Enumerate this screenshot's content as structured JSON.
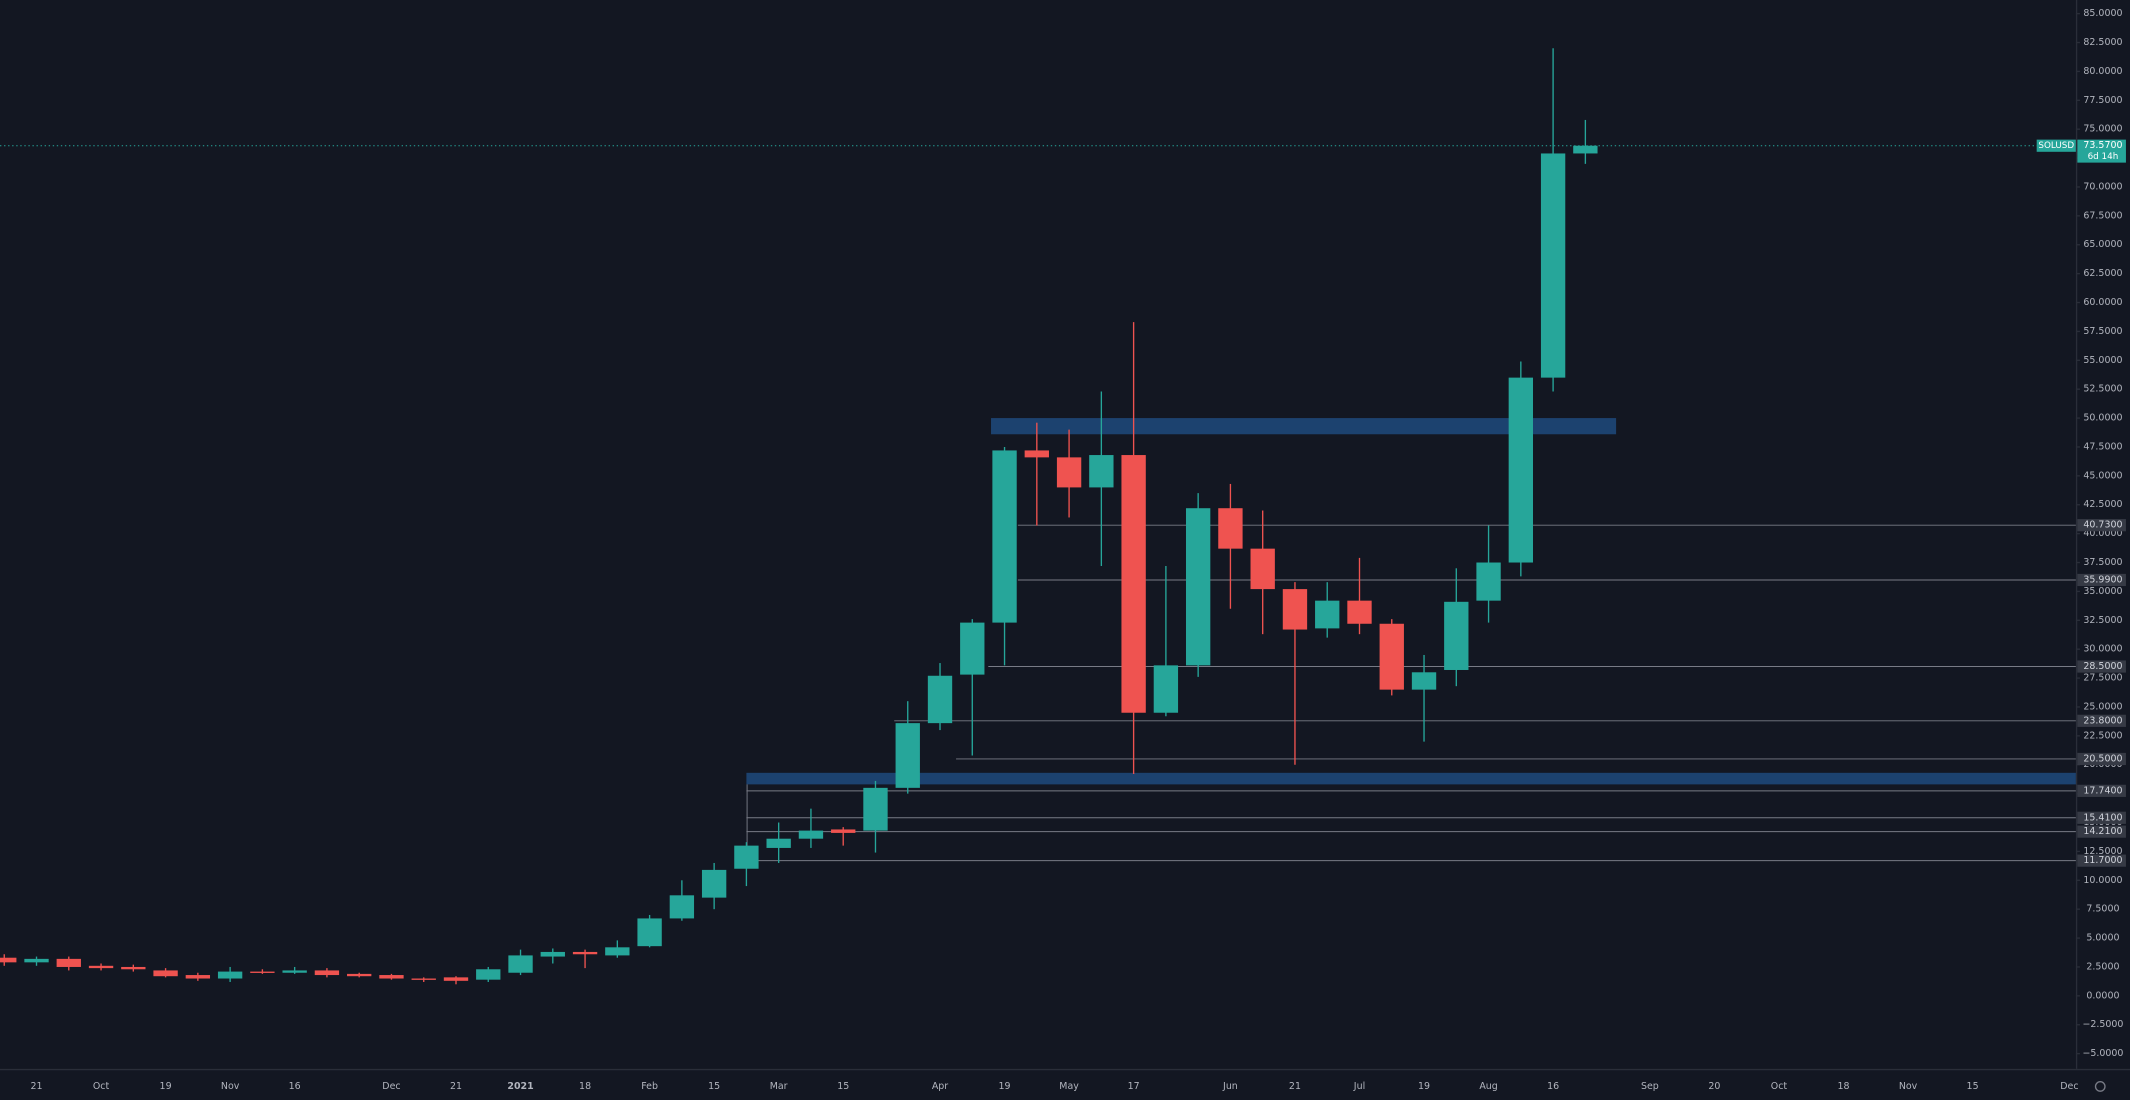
{
  "chart_data": {
    "type": "candlestick",
    "symbol": "SOLUSD",
    "countdown": "6d 14h",
    "last_price": {
      "value": 73.57,
      "label": "73.5700"
    },
    "up_color": "#26a69a",
    "down_color": "#ef5350",
    "zone_color": "#1f4a7d",
    "level_color": "#787b86",
    "categories": [
      null,
      "21",
      null,
      "Oct",
      null,
      "19",
      null,
      "Nov",
      null,
      "16",
      null,
      null,
      "Dec",
      null,
      "21",
      null,
      "2021",
      null,
      "18",
      null,
      "Feb",
      null,
      "15",
      null,
      "Mar",
      null,
      "15",
      null,
      null,
      "Apr",
      null,
      "19",
      null,
      "May",
      null,
      "17",
      null,
      null,
      "Jun",
      null,
      "21",
      null,
      "Jul",
      null,
      "19",
      null,
      "Aug",
      null,
      "16",
      null,
      null,
      "Sep",
      null,
      "20",
      null,
      "Oct",
      null,
      "18",
      null,
      "Nov",
      null,
      "15",
      null,
      null,
      "Dec"
    ],
    "open": [
      3.3,
      2.9,
      3.2,
      2.6,
      2.5,
      2.2,
      1.8,
      1.5,
      2.1,
      2.0,
      2.2,
      1.9,
      1.8,
      1.5,
      1.6,
      1.4,
      2.0,
      3.4,
      3.8,
      3.5,
      4.3,
      6.7,
      8.5,
      11.0,
      12.8,
      13.6,
      14.4,
      14.3,
      18.0,
      23.6,
      27.8,
      32.3,
      47.2,
      46.6,
      44.0,
      46.8,
      24.5,
      28.6,
      42.2,
      38.7,
      35.2,
      31.8,
      34.2,
      32.2,
      26.5,
      28.2,
      34.2,
      37.5,
      53.5,
      72.9,
      null,
      null,
      null,
      null,
      null,
      null,
      null,
      null,
      null,
      null,
      null,
      null,
      null,
      null,
      null
    ],
    "high": [
      3.6,
      3.4,
      3.4,
      2.8,
      2.7,
      2.4,
      2.0,
      2.5,
      2.3,
      2.5,
      2.4,
      2.0,
      1.9,
      1.6,
      1.7,
      2.5,
      4.0,
      4.1,
      4.0,
      4.8,
      7.0,
      10.0,
      11.5,
      13.3,
      15.0,
      16.2,
      14.6,
      18.6,
      25.5,
      28.8,
      32.6,
      47.5,
      49.6,
      49.0,
      52.3,
      58.3,
      37.2,
      43.5,
      44.3,
      42.0,
      35.8,
      35.8,
      37.9,
      32.6,
      29.5,
      37.0,
      40.7,
      54.9,
      82.0,
      75.8,
      null,
      null,
      null,
      null,
      null,
      null,
      null,
      null,
      null,
      null,
      null,
      null,
      null,
      null,
      null
    ],
    "low": [
      2.6,
      2.6,
      2.2,
      2.2,
      2.1,
      1.6,
      1.3,
      1.2,
      1.9,
      1.9,
      1.6,
      1.6,
      1.4,
      1.2,
      1.0,
      1.2,
      1.8,
      2.8,
      2.4,
      3.3,
      4.2,
      6.5,
      7.5,
      9.5,
      11.5,
      12.8,
      13.0,
      12.4,
      17.5,
      23.0,
      20.8,
      28.6,
      40.7,
      41.4,
      37.2,
      19.2,
      24.2,
      27.6,
      33.5,
      31.3,
      20.0,
      31.0,
      31.3,
      26.0,
      22.0,
      26.8,
      32.3,
      36.3,
      52.3,
      72.0,
      null,
      null,
      null,
      null,
      null,
      null,
      null,
      null,
      null,
      null,
      null,
      null,
      null,
      null,
      null
    ],
    "close": [
      2.9,
      3.2,
      2.5,
      2.4,
      2.3,
      1.7,
      1.5,
      2.1,
      2.0,
      2.2,
      1.8,
      1.7,
      1.5,
      1.4,
      1.3,
      2.3,
      3.5,
      3.8,
      3.6,
      4.2,
      6.7,
      8.7,
      10.9,
      13.0,
      13.6,
      14.3,
      14.1,
      18.0,
      23.6,
      27.7,
      32.3,
      47.2,
      46.6,
      44.0,
      46.8,
      24.5,
      28.6,
      42.2,
      38.7,
      35.2,
      31.7,
      34.2,
      32.2,
      26.5,
      28.0,
      34.1,
      37.5,
      53.5,
      72.9,
      73.57,
      null,
      null,
      null,
      null,
      null,
      null,
      null,
      null,
      null,
      null,
      null,
      null,
      null,
      null,
      null
    ],
    "ylim": [
      -6.32,
      86.18
    ],
    "yticks": [
      {
        "value": 85,
        "label": "85.0000"
      },
      {
        "value": 82.5,
        "label": "82.5000"
      },
      {
        "value": 80,
        "label": "80.0000"
      },
      {
        "value": 77.5,
        "label": "77.5000"
      },
      {
        "value": 75,
        "label": "75.0000"
      },
      {
        "value": 72.5,
        "label": "72.5000"
      },
      {
        "value": 70,
        "label": "70.0000"
      },
      {
        "value": 67.5,
        "label": "67.5000"
      },
      {
        "value": 65,
        "label": "65.0000"
      },
      {
        "value": 62.5,
        "label": "62.5000"
      },
      {
        "value": 60,
        "label": "60.0000"
      },
      {
        "value": 57.5,
        "label": "57.5000"
      },
      {
        "value": 55,
        "label": "55.0000"
      },
      {
        "value": 52.5,
        "label": "52.5000"
      },
      {
        "value": 50,
        "label": "50.0000"
      },
      {
        "value": 47.5,
        "label": "47.5000"
      },
      {
        "value": 45,
        "label": "45.0000"
      },
      {
        "value": 42.5,
        "label": "42.5000"
      },
      {
        "value": 40,
        "label": "40.0000"
      },
      {
        "value": 37.5,
        "label": "37.5000"
      },
      {
        "value": 35,
        "label": "35.0000"
      },
      {
        "value": 32.5,
        "label": "32.5000"
      },
      {
        "value": 30,
        "label": "30.0000"
      },
      {
        "value": 27.5,
        "label": "27.5000"
      },
      {
        "value": 25,
        "label": "25.0000"
      },
      {
        "value": 22.5,
        "label": "22.5000"
      },
      {
        "value": 20,
        "label": "20.0000"
      },
      {
        "value": 17.5,
        "label": "17.5000"
      },
      {
        "value": 15,
        "label": "15.0000"
      },
      {
        "value": 12.5,
        "label": "12.5000"
      },
      {
        "value": 10,
        "label": "10.0000"
      },
      {
        "value": 7.5,
        "label": "7.5000"
      },
      {
        "value": 5,
        "label": "5.0000"
      },
      {
        "value": 2.5,
        "label": "2.5000"
      },
      {
        "value": 0,
        "label": "0.0000"
      },
      {
        "value": -2.5,
        "label": "−2.5000"
      },
      {
        "value": -5,
        "label": "−5.0000"
      }
    ],
    "levels": [
      {
        "value": 40.73,
        "label": "40.7300"
      },
      {
        "value": 35.99,
        "label": "35.9900"
      },
      {
        "value": 28.5,
        "label": "28.5000"
      },
      {
        "value": 23.8,
        "label": "23.8000"
      },
      {
        "value": 20.5,
        "label": "20.5000"
      },
      {
        "value": 17.74,
        "label": "17.7400"
      },
      {
        "value": 15.41,
        "label": "15.4100"
      },
      {
        "value": 14.21,
        "label": "14.2100"
      },
      {
        "value": 11.7,
        "label": "11.7000"
      }
    ],
    "zones": [
      {
        "low": 48.6,
        "high": 50.0
      },
      {
        "low": 18.3,
        "high": 19.3
      }
    ]
  }
}
